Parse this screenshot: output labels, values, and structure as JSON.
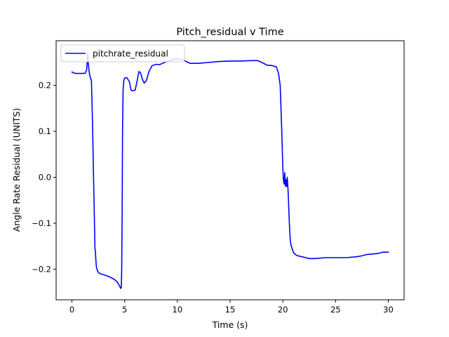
{
  "chart_data": {
    "type": "line",
    "title": "Pitch_residual v Time",
    "xlabel": "Time (s)",
    "ylabel": "Angle Rate Residual (UNITS)",
    "xlim": [
      -1.5,
      31.5
    ],
    "ylim": [
      -0.2667,
      0.2972
    ],
    "xticks": [
      0,
      5,
      10,
      15,
      20,
      25,
      30
    ],
    "xtick_labels": [
      "0",
      "5",
      "10",
      "15",
      "20",
      "25",
      "30"
    ],
    "yticks": [
      -0.2,
      -0.1,
      0.0,
      0.1,
      0.2
    ],
    "ytick_labels": [
      "−0.2",
      "−0.1",
      "0.0",
      "0.1",
      "0.2"
    ],
    "grid": false,
    "legend": "top-left",
    "series": [
      {
        "name": "pitchrate_residual",
        "color": "#0000ff",
        "x": [
          0.0,
          0.3,
          0.6,
          1.0,
          1.25,
          1.4,
          1.5,
          1.55,
          1.62,
          1.7,
          1.78,
          1.85,
          1.95,
          2.05,
          2.12,
          2.18,
          2.22,
          2.27,
          2.32,
          2.38,
          2.45,
          2.55,
          2.7,
          3.0,
          3.5,
          4.0,
          4.3,
          4.5,
          4.62,
          4.68,
          4.72,
          4.76,
          4.8,
          4.85,
          4.92,
          5.0,
          5.2,
          5.45,
          5.6,
          5.75,
          6.0,
          6.2,
          6.35,
          6.5,
          6.7,
          6.85,
          7.05,
          7.3,
          7.6,
          8.0,
          8.3,
          8.6,
          9.0,
          9.5,
          10.0,
          10.5,
          11.0,
          11.2,
          12.0,
          13.0,
          14.0,
          15.0,
          16.0,
          17.0,
          17.6,
          18.0,
          18.5,
          19.0,
          19.4,
          19.6,
          19.75,
          19.9,
          20.0,
          20.05,
          20.12,
          20.18,
          20.25,
          20.3,
          20.38,
          20.42,
          20.5,
          20.55,
          20.6,
          20.66,
          20.72,
          20.8,
          20.88,
          20.95,
          21.0,
          21.05,
          21.1,
          21.2,
          21.3,
          21.6,
          22.0,
          22.5,
          23.0,
          23.5,
          24.0,
          25.0,
          26.0,
          27.0,
          27.5,
          28.0,
          29.0,
          29.5,
          30.0
        ],
        "y": [
          0.229,
          0.226,
          0.226,
          0.226,
          0.226,
          0.234,
          0.27,
          0.25,
          0.232,
          0.22,
          0.215,
          0.21,
          0.12,
          0.0,
          -0.08,
          -0.155,
          -0.16,
          -0.18,
          -0.196,
          -0.2,
          -0.205,
          -0.208,
          -0.21,
          -0.212,
          -0.216,
          -0.222,
          -0.228,
          -0.236,
          -0.242,
          -0.24,
          -0.2,
          -0.08,
          0.1,
          0.19,
          0.21,
          0.216,
          0.217,
          0.208,
          0.19,
          0.188,
          0.19,
          0.212,
          0.23,
          0.228,
          0.212,
          0.205,
          0.21,
          0.23,
          0.243,
          0.246,
          0.245,
          0.248,
          0.252,
          0.256,
          0.258,
          0.256,
          0.25,
          0.248,
          0.248,
          0.25,
          0.252,
          0.253,
          0.253,
          0.254,
          0.254,
          0.25,
          0.244,
          0.243,
          0.24,
          0.225,
          0.2,
          0.1,
          0.02,
          -0.005,
          -0.015,
          0.01,
          -0.02,
          -0.005,
          -0.02,
          0.0,
          -0.03,
          -0.06,
          -0.09,
          -0.12,
          -0.14,
          -0.15,
          -0.155,
          -0.16,
          -0.163,
          -0.165,
          -0.166,
          -0.168,
          -0.17,
          -0.172,
          -0.174,
          -0.177,
          -0.177,
          -0.176,
          -0.175,
          -0.175,
          -0.175,
          -0.173,
          -0.171,
          -0.168,
          -0.166,
          -0.163,
          -0.163
        ]
      }
    ]
  }
}
